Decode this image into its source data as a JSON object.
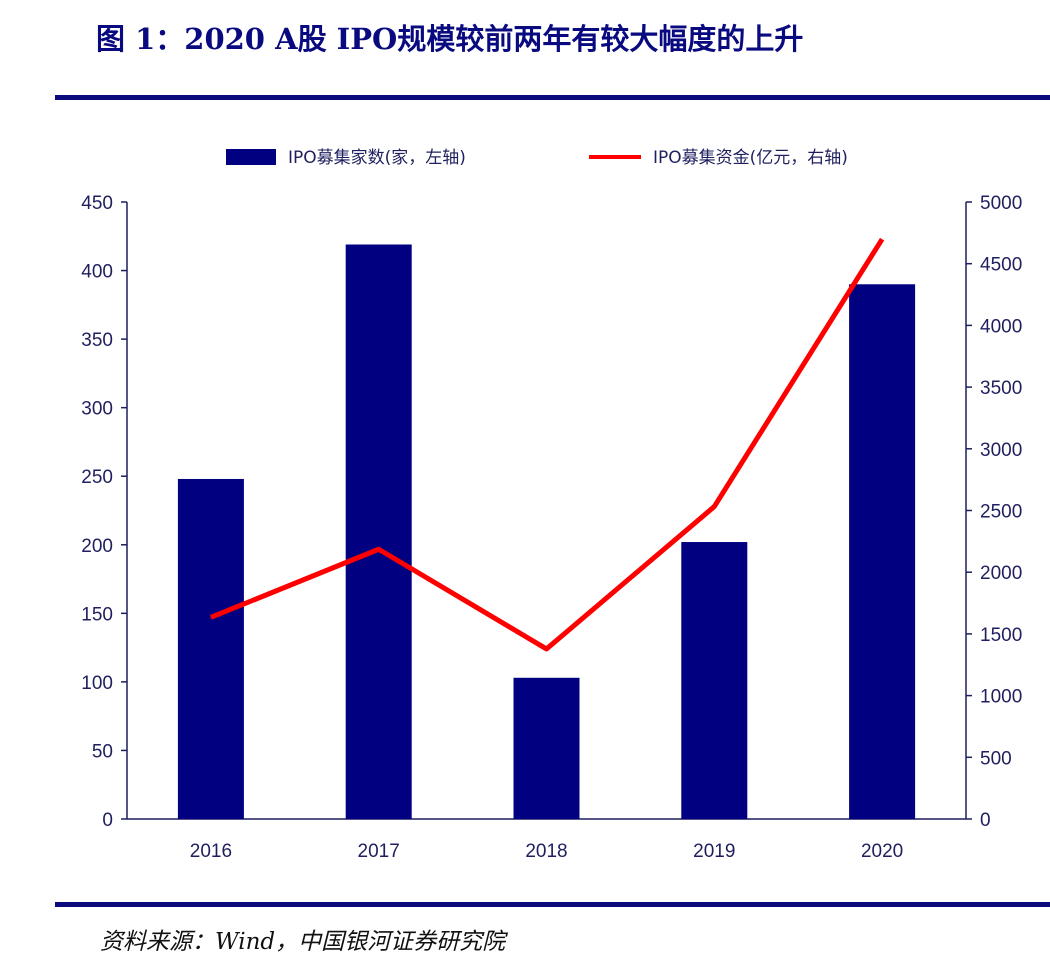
{
  "header": {
    "title": "图 1：2020 A股 IPO规模较前两年有较大幅度的上升"
  },
  "footer": {
    "source": "资料来源：Wind，中国银河证券研究院"
  },
  "colors": {
    "bars": "#000080",
    "line": "#ff0000",
    "rule": "#0b0b7e"
  },
  "chart_data": {
    "type": "bar",
    "categories": [
      "2016",
      "2017",
      "2018",
      "2019",
      "2020"
    ],
    "series": [
      {
        "name": "IPO募集家数(家，左轴)",
        "type": "bar",
        "axis": "left",
        "values": [
          248,
          419,
          103,
          202,
          390
        ]
      },
      {
        "name": "IPO募集资金(亿元，右轴)",
        "type": "line",
        "axis": "right",
        "values": [
          1634,
          2186,
          1378,
          2532,
          4699
        ]
      }
    ],
    "y_left": {
      "min": 0,
      "max": 450,
      "ticks": [
        0,
        50,
        100,
        150,
        200,
        250,
        300,
        350,
        400,
        450
      ]
    },
    "y_right": {
      "min": 0,
      "max": 5000,
      "ticks": [
        0,
        500,
        1000,
        1500,
        2000,
        2500,
        3000,
        3500,
        4000,
        4500,
        5000
      ]
    },
    "legend": "top",
    "grid": false
  }
}
